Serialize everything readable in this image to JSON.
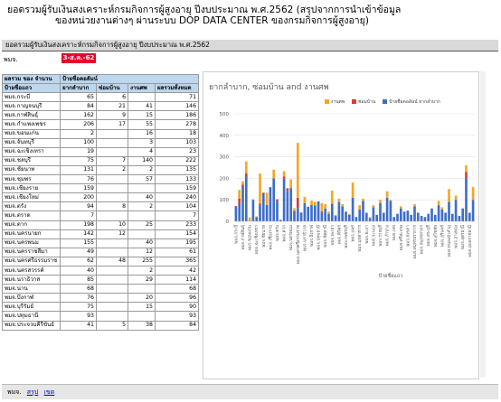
{
  "header": {
    "line1": "ยอดรวมผู้รับเงินสงเคราะห์กรมกิจการผู้สูงอายุ ปีงบประมาณ พ.ศ.2562 (สรุปจากการนำเข้าข้อมูล",
    "line2": "ของหน่วยงานต่างๆ ผ่านระบบ DOP DATA CENTER ของกรมกิจการผู้สูงอายุ)"
  },
  "sheet": {
    "title": "ยอดรวมผู้รับเงินสงเคราะห์กรมกิจการผู้สูงอายุ ปีงบประมาณ พ.ศ.2562",
    "unit_label": "พมจ.",
    "date_badge": "3-ส.ค.-62"
  },
  "table": {
    "section_title": "ผลรวม ของ จำนวน",
    "group_header": "ป้ายชื่อคอลัมน์",
    "columns": [
      "ป้ายชื่อแถว",
      "ยากลำบาก",
      "ซ่อมบ้าน",
      "งานศพ",
      "ผลรวมทั้งหมด"
    ],
    "rows": [
      [
        "พมจ.กระบี่",
        "65",
        "6",
        "",
        "71"
      ],
      [
        "พมจ.กาญจนบุรี",
        "84",
        "21",
        "41",
        "146"
      ],
      [
        "พมจ.กาฬสินธุ์",
        "162",
        "9",
        "15",
        "186"
      ],
      [
        "พมจ.กำแพงเพชร",
        "206",
        "17",
        "55",
        "278"
      ],
      [
        "พมจ.ขอนแก่น",
        "2",
        "",
        "16",
        "18"
      ],
      [
        "พมจ.จันทบุรี",
        "100",
        "",
        "3",
        "103"
      ],
      [
        "พมจ.ฉะเชิงเทรา",
        "19",
        "",
        "4",
        "23"
      ],
      [
        "พมจ.ชลบุรี",
        "75",
        "7",
        "140",
        "222"
      ],
      [
        "พมจ.ชัยนาท",
        "131",
        "2",
        "2",
        "135"
      ],
      [
        "พมจ.ชุมพร",
        "76",
        "",
        "57",
        "133"
      ],
      [
        "พมจ.เชียงราย",
        "159",
        "",
        "",
        "159"
      ],
      [
        "พมจ.เชียงใหม่",
        "200",
        "",
        "40",
        "240"
      ],
      [
        "พมจ.ตรัง",
        "94",
        "8",
        "2",
        "104"
      ],
      [
        "พมจ.ตราด",
        "7",
        "",
        "",
        "7"
      ],
      [
        "พมจ.ตาก",
        "198",
        "10",
        "25",
        "233"
      ],
      [
        "พมจ.นครนายก",
        "142",
        "12",
        "",
        "154"
      ],
      [
        "พมจ.นครพนม",
        "155",
        "",
        "40",
        "195"
      ],
      [
        "พมจ.นครราชสีมา",
        "49",
        "",
        "12",
        "61"
      ],
      [
        "พมจ.นครศรีธรรมราช",
        "62",
        "48",
        "255",
        "365"
      ],
      [
        "พมจ.นครสวรรค์",
        "40",
        "",
        "2",
        "42"
      ],
      [
        "พมจ.นราธิวาส",
        "85",
        "",
        "29",
        "114"
      ],
      [
        "พมจ.น่าน",
        "68",
        "",
        "",
        "68"
      ],
      [
        "พมจ.บึงกาฬ",
        "76",
        "",
        "20",
        "96"
      ],
      [
        "พมจ.บุรีรัมย์",
        "75",
        "",
        "15",
        "90"
      ],
      [
        "พมจ.ปทุมธานี",
        "93",
        "",
        "",
        "93"
      ],
      [
        "พมจ.ประจวบคีรีขันธ์",
        "41",
        "5",
        "38",
        "84"
      ]
    ]
  },
  "chart_data": {
    "type": "bar",
    "stacked": true,
    "title": "ยากลำบาก, ซ่อมบ้าน and งานศพ",
    "xlabel": "ป้ายชื่อแถว",
    "ylabel": "",
    "ylim": [
      0,
      500
    ],
    "yticks": [
      0,
      100,
      200,
      300,
      400,
      500
    ],
    "legend_position": "top",
    "legend": [
      "งานศพ",
      "ซ่อมบ้าน",
      "ป้ายชื่อคอลัมน์ ยากลำบาก"
    ],
    "colors": {
      "งานศพ": "#f5a623",
      "ซ่อมบ้าน": "#d63c2f",
      "ยากลำบาก": "#3e6ec9"
    },
    "x_tick_labels": [
      "พมจ.กระบี่",
      "พมจ.กาฬสินธุ์",
      "พมจ.ขอนแก่น",
      "พมจ.ฉะเชิงเทรา",
      "พมจ.ชัยนาท",
      "พมจ.เชียงราย",
      "พมจ.ตรัง",
      "พมจ.ตาก",
      "พมจ.นครพนม",
      "พมจ.นครศรีธรรมราช",
      "พมจ.นราธิวาส",
      "พมจ.บึงกาฬ",
      "พมจ.ปทุมธานี",
      "พมจ.ปัตตานี",
      "พมจ.พะเยา",
      "พมจ.พิจิตร",
      "พมจ.เพชรบุรี",
      "พมจ.แพร่",
      "พมจ.มุกดาหาร",
      "พมจ.ยะลา",
      "พมจ.ระนอง",
      "พมจ.ราชบุรี",
      "พมจ.ลำปาง",
      "พมจ.เลย",
      "พมจ.ศรีสะเกษ",
      "พมจ.สงขลา",
      "พมจ.สมุทรปราการ",
      "พมจ.สมุทรสาคร",
      "พมจ.สระบุรี",
      "พมจ.สุโขทัย",
      "พมจ.สุรินทร์",
      "พมจ.หนองบัวลำภู",
      "พมจ.อ่างทอง",
      "พมจ.อุดรธานี",
      "พมจ.อุบลราชธานี"
    ],
    "categories_count": 70,
    "series": [
      {
        "name": "ยากลำบาก",
        "values": [
          65,
          84,
          162,
          206,
          2,
          100,
          19,
          75,
          131,
          76,
          159,
          200,
          94,
          7,
          198,
          142,
          155,
          49,
          62,
          40,
          85,
          68,
          76,
          75,
          93,
          41,
          60,
          35,
          80,
          25,
          90,
          70,
          45,
          30,
          110,
          20,
          55,
          95,
          40,
          15,
          65,
          30,
          85,
          40,
          110,
          95,
          20,
          35,
          60,
          45,
          50,
          30,
          70,
          40,
          25,
          20,
          35,
          60,
          30,
          75,
          55,
          40,
          90,
          35,
          100,
          25,
          60,
          200,
          40,
          100
        ]
      },
      {
        "name": "ซ่อมบ้าน",
        "values": [
          6,
          21,
          9,
          17,
          0,
          0,
          0,
          7,
          2,
          0,
          0,
          0,
          8,
          0,
          10,
          12,
          0,
          0,
          48,
          0,
          0,
          0,
          0,
          0,
          0,
          5,
          0,
          0,
          3,
          0,
          0,
          0,
          0,
          0,
          0,
          0,
          0,
          0,
          0,
          0,
          0,
          0,
          0,
          0,
          0,
          0,
          0,
          0,
          0,
          0,
          0,
          0,
          0,
          0,
          0,
          0,
          0,
          0,
          0,
          0,
          0,
          0,
          0,
          0,
          0,
          0,
          0,
          30,
          0,
          0
        ]
      },
      {
        "name": "งานศพ",
        "values": [
          0,
          41,
          15,
          55,
          16,
          3,
          4,
          140,
          2,
          57,
          0,
          40,
          2,
          0,
          25,
          0,
          40,
          12,
          255,
          2,
          29,
          0,
          20,
          15,
          0,
          38,
          20,
          10,
          60,
          5,
          15,
          10,
          0,
          5,
          70,
          0,
          20,
          10,
          0,
          5,
          10,
          0,
          15,
          0,
          30,
          5,
          0,
          0,
          10,
          0,
          0,
          0,
          10,
          0,
          0,
          0,
          0,
          0,
          0,
          20,
          10,
          0,
          60,
          0,
          20,
          0,
          0,
          30,
          0,
          60
        ]
      }
    ]
  },
  "footer": {
    "tab1": "พมจ.",
    "tab2": "สรุป",
    "tab3": "เขต"
  }
}
